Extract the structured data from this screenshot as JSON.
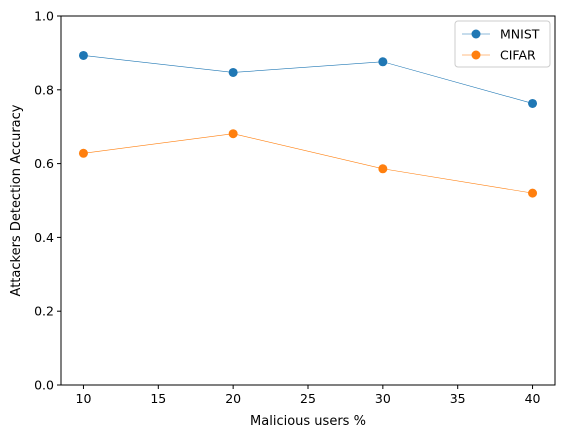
{
  "chart_data": {
    "type": "line",
    "title": "",
    "xlabel": "Malicious users %",
    "ylabel": "Attackers Detection Accuracy",
    "x": [
      10,
      20,
      30,
      40
    ],
    "xlim": [
      8.5,
      41.5
    ],
    "ylim": [
      0.0,
      1.0
    ],
    "xticks": [
      10,
      15,
      20,
      25,
      30,
      35,
      40
    ],
    "yticks": [
      0.0,
      0.2,
      0.4,
      0.6,
      0.8,
      1.0
    ],
    "xtick_labels": [
      "10",
      "15",
      "20",
      "25",
      "30",
      "35",
      "40"
    ],
    "ytick_labels": [
      "0.0",
      "0.2",
      "0.4",
      "0.6",
      "0.8",
      "1.0"
    ],
    "grid": false,
    "legend_position": "top-right",
    "series": [
      {
        "name": "MNIST",
        "color": "#1f77b4",
        "values": [
          0.893,
          0.847,
          0.876,
          0.763
        ]
      },
      {
        "name": "CIFAR",
        "color": "#ff7f0e",
        "values": [
          0.628,
          0.681,
          0.586,
          0.52
        ]
      }
    ]
  }
}
